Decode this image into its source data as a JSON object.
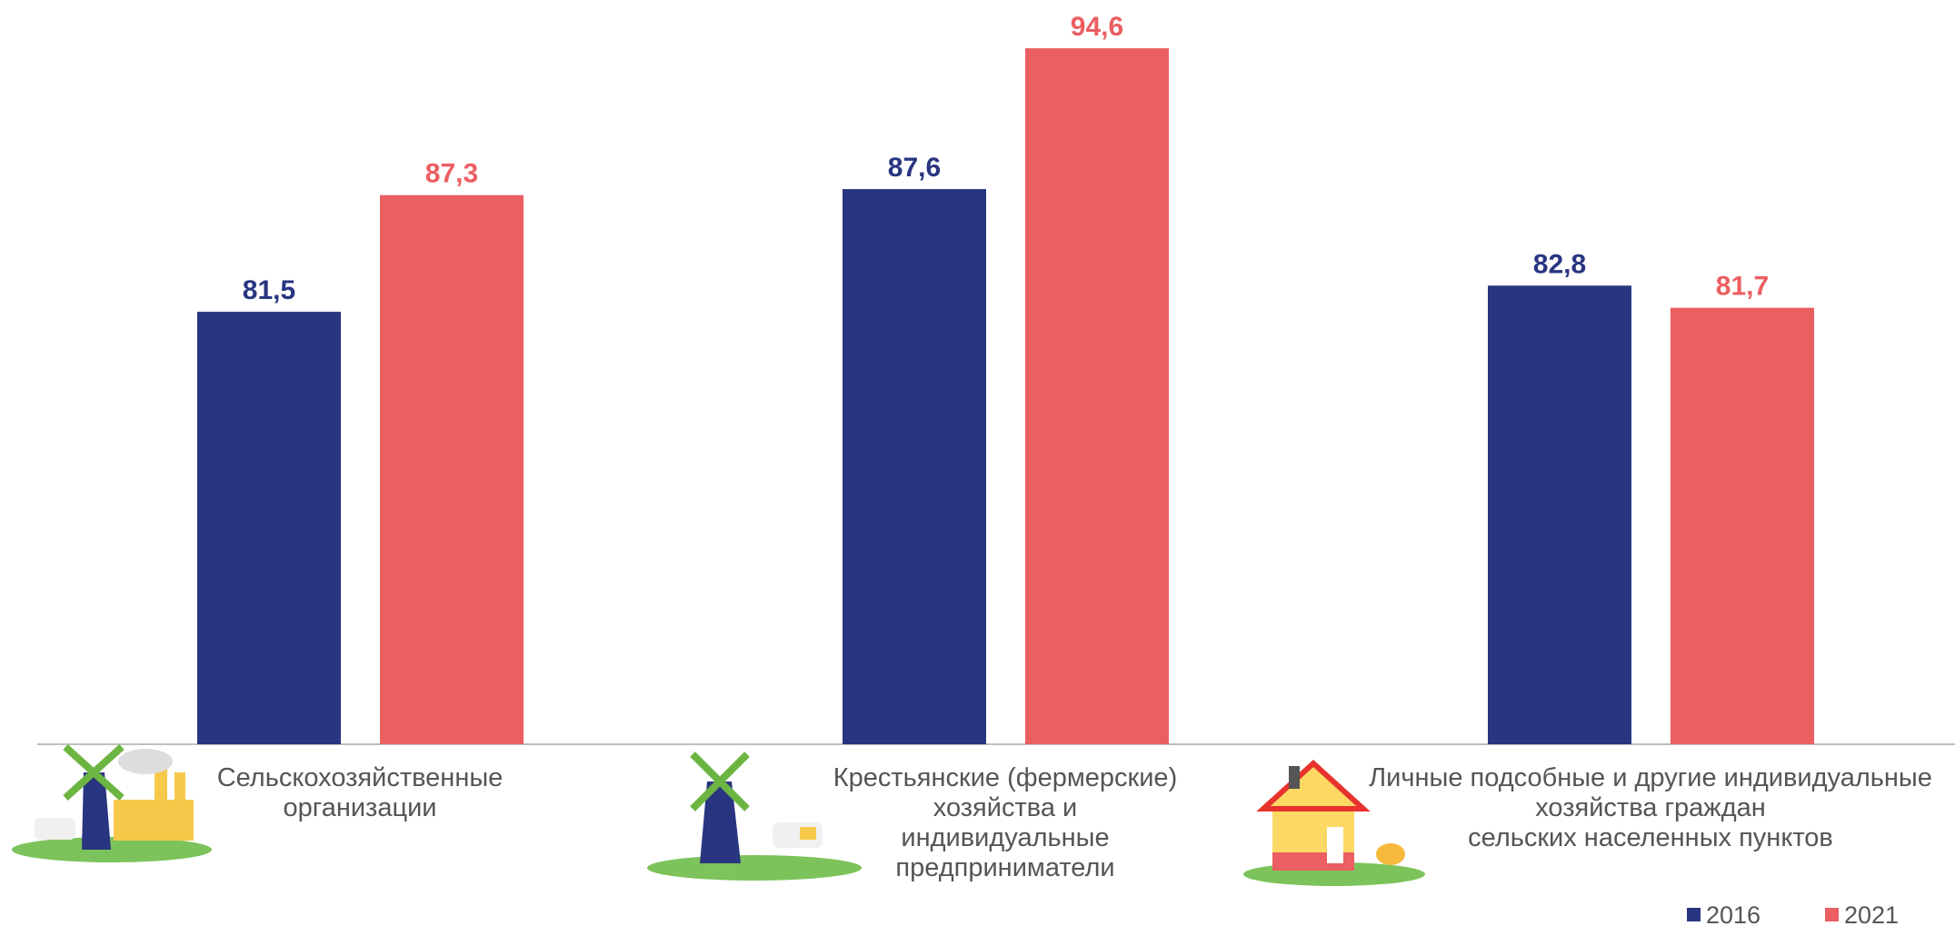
{
  "chart_data": {
    "type": "bar",
    "categories": [
      "Сельскохозяйственные\nорганизации",
      "Крестьянские (фермерские)\nхозяйства и\nиндивидуальные\nпредприниматели",
      "Личные подсобные и другие индивидуальные\nхозяйства граждан\nсельских населенных пунктов"
    ],
    "series": [
      {
        "name": "2016",
        "color": "#293580",
        "values": [
          81.5,
          87.6,
          82.8
        ],
        "value_labels": [
          "81,5",
          "87,6",
          "82,8"
        ]
      },
      {
        "name": "2021",
        "color": "#eb5e61",
        "values": [
          87.3,
          94.6,
          81.7
        ],
        "value_labels": [
          "87,3",
          "94,6",
          "81,7"
        ]
      }
    ],
    "ylim": [
      60,
      97
    ],
    "legend": "bottom-right"
  }
}
